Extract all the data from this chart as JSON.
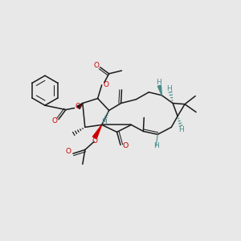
{
  "bg_color": "#e8e8e8",
  "bond_color": "#1a1a1a",
  "oxygen_color": "#cc0000",
  "stereo_h_color": "#4a8a8a",
  "figsize": [
    3.0,
    3.0
  ],
  "dpi": 100,
  "xlim": [
    0,
    10
  ],
  "ylim": [
    0,
    10
  ]
}
